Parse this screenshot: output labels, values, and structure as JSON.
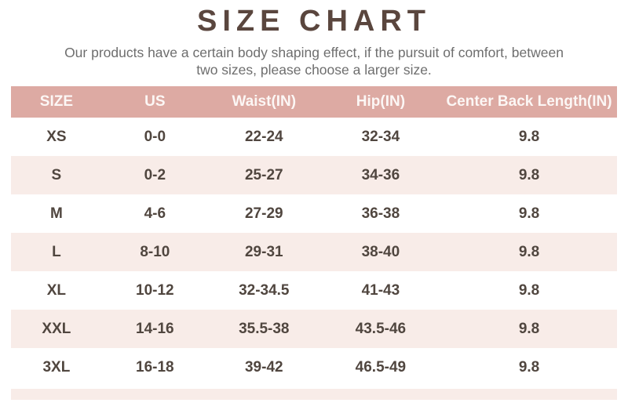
{
  "page": {
    "title": "SIZE CHART",
    "subtitle_line1": "Our products have a certain body shaping effect, if the pursuit of comfort, between",
    "subtitle_line2": "two sizes, please choose a larger size."
  },
  "colors": {
    "title_text": "#5a463e",
    "subtitle_text": "#6e6e6e",
    "header_bg": "#ddaaa3",
    "header_text": "#fcf7f5",
    "row_alt_bg": "#f8ece8",
    "body_text": "#50463f"
  },
  "size_table": {
    "columns": [
      "SIZE",
      "US",
      "Waist(IN)",
      "Hip(IN)",
      "Center Back Length(IN)"
    ],
    "rows": [
      {
        "size": "XS",
        "us": "0-0",
        "waist": "22-24",
        "hip": "32-34",
        "cbl": "9.8"
      },
      {
        "size": "S",
        "us": "0-2",
        "waist": "25-27",
        "hip": "34-36",
        "cbl": "9.8"
      },
      {
        "size": "M",
        "us": "4-6",
        "waist": "27-29",
        "hip": "36-38",
        "cbl": "9.8"
      },
      {
        "size": "L",
        "us": "8-10",
        "waist": "29-31",
        "hip": "38-40",
        "cbl": "9.8"
      },
      {
        "size": "XL",
        "us": "10-12",
        "waist": "32-34.5",
        "hip": "41-43",
        "cbl": "9.8"
      },
      {
        "size": "XXL",
        "us": "14-16",
        "waist": "35.5-38",
        "hip": "43.5-46",
        "cbl": "9.8"
      },
      {
        "size": "3XL",
        "us": "16-18",
        "waist": "39-42",
        "hip": "46.5-49",
        "cbl": "9.8"
      }
    ]
  }
}
